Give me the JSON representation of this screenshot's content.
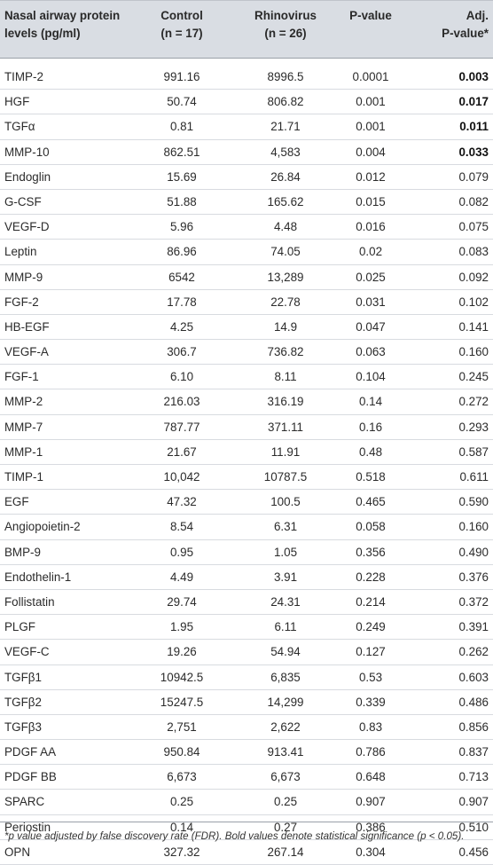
{
  "header": {
    "protein_line1": "Nasal airway protein",
    "protein_line2": "levels (pg/ml)",
    "control_line1": "Control",
    "control_line2": "(n = 17)",
    "rhinovirus_line1": "Rhinovirus",
    "rhinovirus_line2": "(n = 26)",
    "pvalue": "P-value",
    "adj_line1": "Adj.",
    "adj_line2": "P-value*"
  },
  "rows": [
    {
      "protein": "TIMP-2",
      "control": "991.16",
      "rhinovirus": "8996.5",
      "p": "0.0001",
      "adj": "0.003",
      "bold": true
    },
    {
      "protein": "HGF",
      "control": "50.74",
      "rhinovirus": "806.82",
      "p": "0.001",
      "adj": "0.017",
      "bold": true
    },
    {
      "protein": "TGFα",
      "control": "0.81",
      "rhinovirus": "21.71",
      "p": "0.001",
      "adj": "0.011",
      "bold": true
    },
    {
      "protein": "MMP-10",
      "control": "862.51",
      "rhinovirus": "4,583",
      "p": "0.004",
      "adj": "0.033",
      "bold": true
    },
    {
      "protein": "Endoglin",
      "control": "15.69",
      "rhinovirus": "26.84",
      "p": "0.012",
      "adj": "0.079",
      "bold": false
    },
    {
      "protein": "G-CSF",
      "control": "51.88",
      "rhinovirus": "165.62",
      "p": "0.015",
      "adj": "0.082",
      "bold": false
    },
    {
      "protein": "VEGF-D",
      "control": "5.96",
      "rhinovirus": "4.48",
      "p": "0.016",
      "adj": "0.075",
      "bold": false
    },
    {
      "protein": "Leptin",
      "control": "86.96",
      "rhinovirus": "74.05",
      "p": "0.02",
      "adj": "0.083",
      "bold": false
    },
    {
      "protein": "MMP-9",
      "control": "6542",
      "rhinovirus": "13,289",
      "p": "0.025",
      "adj": "0.092",
      "bold": false
    },
    {
      "protein": "FGF-2",
      "control": "17.78",
      "rhinovirus": "22.78",
      "p": "0.031",
      "adj": "0.102",
      "bold": false
    },
    {
      "protein": "HB-EGF",
      "control": "4.25",
      "rhinovirus": "14.9",
      "p": "0.047",
      "adj": "0.141",
      "bold": false
    },
    {
      "protein": "VEGF-A",
      "control": "306.7",
      "rhinovirus": "736.82",
      "p": "0.063",
      "adj": "0.160",
      "bold": false
    },
    {
      "protein": "FGF-1",
      "control": "6.10",
      "rhinovirus": "8.11",
      "p": "0.104",
      "adj": "0.245",
      "bold": false
    },
    {
      "protein": "MMP-2",
      "control": "216.03",
      "rhinovirus": "316.19",
      "p": "0.14",
      "adj": "0.272",
      "bold": false
    },
    {
      "protein": "MMP-7",
      "control": "787.77",
      "rhinovirus": "371.11",
      "p": "0.16",
      "adj": "0.293",
      "bold": false
    },
    {
      "protein": "MMP-1",
      "control": "21.67",
      "rhinovirus": "11.91",
      "p": "0.48",
      "adj": "0.587",
      "bold": false
    },
    {
      "protein": "TIMP-1",
      "control": "10,042",
      "rhinovirus": "10787.5",
      "p": "0.518",
      "adj": "0.611",
      "bold": false
    },
    {
      "protein": "EGF",
      "control": "47.32",
      "rhinovirus": "100.5",
      "p": "0.465",
      "adj": "0.590",
      "bold": false
    },
    {
      "protein": "Angiopoietin-2",
      "control": "8.54",
      "rhinovirus": "6.31",
      "p": "0.058",
      "adj": "0.160",
      "bold": false
    },
    {
      "protein": "BMP-9",
      "control": "0.95",
      "rhinovirus": "1.05",
      "p": "0.356",
      "adj": "0.490",
      "bold": false
    },
    {
      "protein": "Endothelin-1",
      "control": "4.49",
      "rhinovirus": "3.91",
      "p": "0.228",
      "adj": "0.376",
      "bold": false
    },
    {
      "protein": "Follistatin",
      "control": "29.74",
      "rhinovirus": "24.31",
      "p": "0.214",
      "adj": "0.372",
      "bold": false
    },
    {
      "protein": "PLGF",
      "control": "1.95",
      "rhinovirus": "6.11",
      "p": "0.249",
      "adj": "0.391",
      "bold": false
    },
    {
      "protein": "VEGF-C",
      "control": "19.26",
      "rhinovirus": "54.94",
      "p": "0.127",
      "adj": "0.262",
      "bold": false
    },
    {
      "protein": "TGFβ1",
      "control": "10942.5",
      "rhinovirus": "6,835",
      "p": "0.53",
      "adj": "0.603",
      "bold": false
    },
    {
      "protein": "TGFβ2",
      "control": "15247.5",
      "rhinovirus": "14,299",
      "p": "0.339",
      "adj": "0.486",
      "bold": false
    },
    {
      "protein": "TGFβ3",
      "control": "2,751",
      "rhinovirus": "2,622",
      "p": "0.83",
      "adj": "0.856",
      "bold": false
    },
    {
      "protein": "PDGF AA",
      "control": "950.84",
      "rhinovirus": "913.41",
      "p": "0.786",
      "adj": "0.837",
      "bold": false
    },
    {
      "protein": "PDGF BB",
      "control": "6,673",
      "rhinovirus": "6,673",
      "p": "0.648",
      "adj": "0.713",
      "bold": false
    },
    {
      "protein": "SPARC",
      "control": "0.25",
      "rhinovirus": "0.25",
      "p": "0.907",
      "adj": "0.907",
      "bold": false
    },
    {
      "protein": "Periostin",
      "control": "0.14",
      "rhinovirus": "0.27",
      "p": "0.386",
      "adj": "0.510",
      "bold": false
    },
    {
      "protein": "OPN",
      "control": "327.32",
      "rhinovirus": "267.14",
      "p": "0.304",
      "adj": "0.456",
      "bold": false
    }
  ],
  "footnote": "*p value adjusted by false discovery rate (FDR). Bold values denote statistical significance (p < 0.05)."
}
